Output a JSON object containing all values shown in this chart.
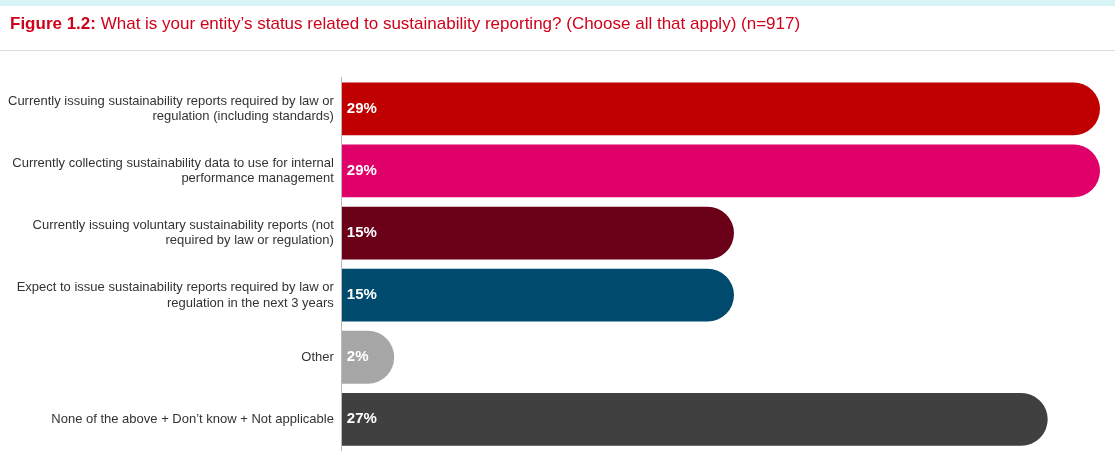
{
  "chart_data": {
    "type": "bar",
    "orientation": "horizontal",
    "title": "Figure 1.2: What is your entity’s status related to sustainability reporting? (Choose all that apply) (n=917)",
    "categories": [
      "Currently issuing sustainability reports required by law or regulation (including standards)",
      "Currently collecting sustainability data to use for internal performance management",
      "Currently issuing voluntary sustainability reports (not required by law or regulation)",
      "Expect to issue sustainability reports required by law or regulation in the next 3 years",
      "Other",
      "None of the above + Don’t know + Not applicable"
    ],
    "values": [
      29,
      29,
      15,
      15,
      2,
      27
    ],
    "colors": [
      "#c00000",
      "#e0006a",
      "#6b0019",
      "#004a6e",
      "#a6a6a6",
      "#404040"
    ],
    "value_labels": [
      "29%",
      "29%",
      "15%",
      "15%",
      "2%",
      "27%"
    ],
    "legend": false
  }
}
